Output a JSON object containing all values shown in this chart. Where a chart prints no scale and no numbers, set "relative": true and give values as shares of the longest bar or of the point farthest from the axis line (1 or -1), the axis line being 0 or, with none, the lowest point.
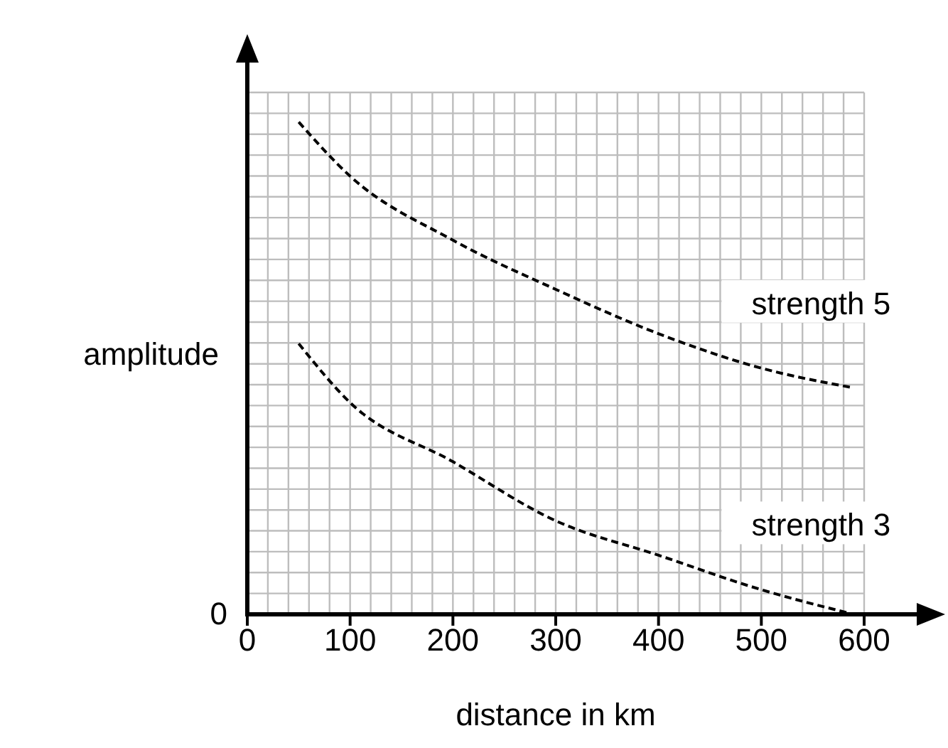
{
  "chart_data": {
    "type": "line",
    "xlabel": "distance in km",
    "ylabel": "amplitude",
    "relative": true,
    "x": [
      50,
      100,
      200,
      300,
      400,
      500,
      590
    ],
    "xlim": [
      0,
      600
    ],
    "xticks": [
      0,
      100,
      200,
      300,
      400,
      500,
      600
    ],
    "series": [
      {
        "name": "strength 5",
        "color": "#000000",
        "values": [
          1,
          0.89,
          0.76,
          0.66,
          0.57,
          0.5,
          0.46
        ]
      },
      {
        "name": "strength 3",
        "color": "#000000",
        "values": [
          0.55,
          0.43,
          0.31,
          0.19,
          0.12,
          0.05,
          0
        ]
      }
    ],
    "annotations": [
      "0"
    ],
    "grid": true,
    "line_style": "dashed",
    "marker": "none"
  }
}
